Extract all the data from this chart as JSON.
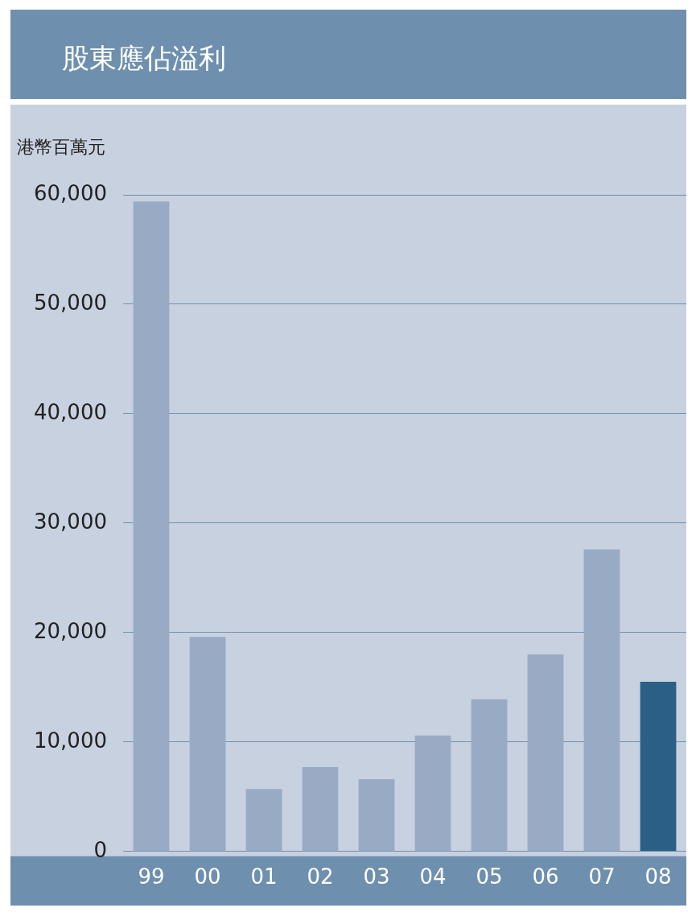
{
  "chart_data": {
    "type": "bar",
    "title": "股東應佔溢利",
    "ylabel": "港幣百萬元",
    "categories": [
      "99",
      "00",
      "01",
      "02",
      "03",
      "04",
      "05",
      "06",
      "07",
      "08"
    ],
    "values": [
      59400,
      19600,
      5700,
      7700,
      6600,
      10600,
      13900,
      18000,
      27600,
      15500
    ],
    "colors": [
      "#99abc4",
      "#99abc4",
      "#99abc4",
      "#99abc4",
      "#99abc4",
      "#99abc4",
      "#99abc4",
      "#99abc4",
      "#99abc4",
      "#2b5f86"
    ],
    "ylim": [
      0,
      60000
    ],
    "yticks": [
      0,
      {
        "value": 10000,
        "label": "10,000"
      },
      {
        "value": 20000,
        "label": "20,000"
      },
      {
        "value": 30000,
        "label": "30,000"
      },
      {
        "value": 40000,
        "label": "40,000"
      },
      {
        "value": 50000,
        "label": "50,000"
      },
      {
        "value": 60000,
        "label": "60,000"
      }
    ],
    "grid": "y"
  }
}
